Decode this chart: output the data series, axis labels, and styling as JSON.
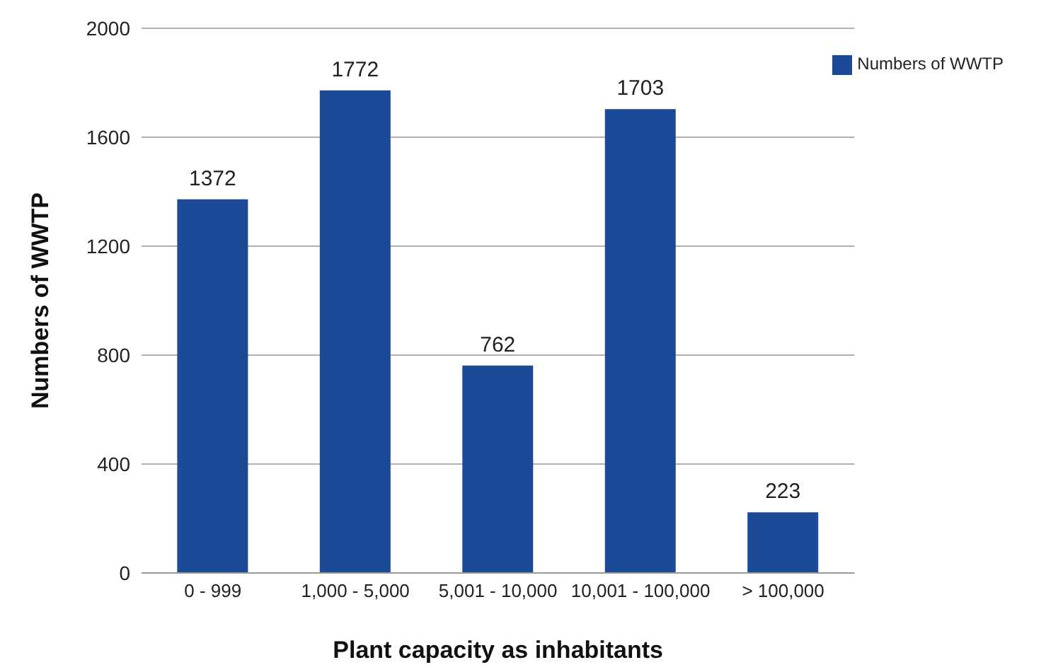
{
  "chart_data": {
    "type": "bar",
    "xlabel": "Plant capacity as inhabitants",
    "ylabel": "Numbers of WWTP",
    "categories": [
      "0 - 999",
      "1,000 - 5,000",
      "5,001 - 10,000",
      "10,001 - 100,000",
      "> 100,000"
    ],
    "series": [
      {
        "name": "Numbers of WWTP",
        "color": "#1c4a96",
        "values": [
          1372,
          1772,
          762,
          1703,
          223
        ]
      }
    ],
    "ylim": [
      0,
      2000
    ],
    "yticks": [
      0,
      400,
      800,
      1200,
      1600,
      2000
    ],
    "grid": "y",
    "legend": "top right",
    "data_labels": true
  }
}
